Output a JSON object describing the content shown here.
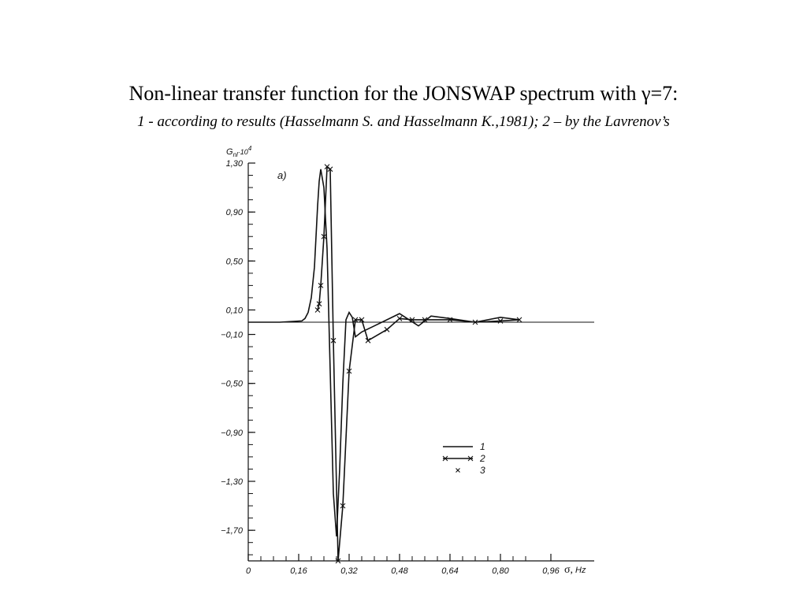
{
  "chart_data": {
    "type": "line",
    "title": "Non-linear transfer function for the JONSWAP spectrum with γ=7:",
    "subtitle": "1 - according to results (Hasselmann S. and Hasselmann K.,1981); 2 – by the Lavrenov’s",
    "ylabel_main": "G",
    "ylabel_sub": "nl",
    "ylabel_factor": "·10",
    "ylabel_exp": "4",
    "xlabel_symbol": "σ,",
    "xlabel_unit": "Hz",
    "panel_label": "a)",
    "xlim": [
      0,
      0.88
    ],
    "ylim": [
      -1.95,
      1.3
    ],
    "x_ticks": [
      {
        "v": 0,
        "label": "0"
      },
      {
        "v": 0.16,
        "label": "0,16"
      },
      {
        "v": 0.32,
        "label": "0,32"
      },
      {
        "v": 0.48,
        "label": "0,48"
      },
      {
        "v": 0.64,
        "label": "0,64"
      },
      {
        "v": 0.8,
        "label": "0,80"
      },
      {
        "v": 0.96,
        "label": "0,96"
      }
    ],
    "y_ticks": [
      {
        "v": 1.3,
        "label": "1,30"
      },
      {
        "v": 0.9,
        "label": "0,90"
      },
      {
        "v": 0.5,
        "label": "0,50"
      },
      {
        "v": 0.1,
        "label": "0,10"
      },
      {
        "v": -0.1,
        "label": "−0,10"
      },
      {
        "v": -0.5,
        "label": "−0,50"
      },
      {
        "v": -0.9,
        "label": "−0,90"
      },
      {
        "v": -1.3,
        "label": "−1,30"
      },
      {
        "v": -1.7,
        "label": "−1,70"
      }
    ],
    "legend": [
      {
        "label": "1",
        "style": "line"
      },
      {
        "label": "2",
        "style": "line-x"
      },
      {
        "label": "3",
        "style": "x"
      }
    ],
    "series": [
      {
        "name": "1",
        "style": "line",
        "x": [
          0,
          0.1,
          0.17,
          0.18,
          0.19,
          0.2,
          0.21,
          0.215,
          0.22,
          0.225,
          0.23,
          0.24,
          0.25,
          0.26,
          0.27,
          0.28,
          0.29,
          0.3,
          0.31,
          0.32,
          0.33,
          0.34,
          0.36,
          0.4,
          0.48,
          0.54,
          0.58,
          0.64,
          0.72,
          0.8,
          0.86
        ],
        "y": [
          0.0,
          0.0,
          0.01,
          0.03,
          0.08,
          0.2,
          0.45,
          0.7,
          0.95,
          1.15,
          1.25,
          1.1,
          0.6,
          -0.4,
          -1.4,
          -1.75,
          -1.2,
          -0.5,
          0.02,
          0.08,
          0.04,
          -0.12,
          -0.08,
          -0.03,
          0.07,
          -0.03,
          0.05,
          0.03,
          0.0,
          0.04,
          0.02
        ]
      },
      {
        "name": "2",
        "style": "line-x",
        "x": [
          0.22,
          0.225,
          0.23,
          0.24,
          0.25,
          0.26,
          0.27,
          0.285,
          0.3,
          0.32,
          0.34,
          0.36,
          0.38,
          0.44,
          0.48,
          0.52,
          0.56,
          0.64,
          0.72,
          0.8,
          0.86
        ],
        "y": [
          0.1,
          0.15,
          0.3,
          0.7,
          1.27,
          1.25,
          -0.15,
          -1.95,
          -1.5,
          -0.4,
          0.02,
          0.02,
          -0.15,
          -0.06,
          0.03,
          0.02,
          0.02,
          0.02,
          0.0,
          0.01,
          0.02
        ]
      },
      {
        "name": "3",
        "style": "x",
        "x": [],
        "y": []
      }
    ]
  }
}
